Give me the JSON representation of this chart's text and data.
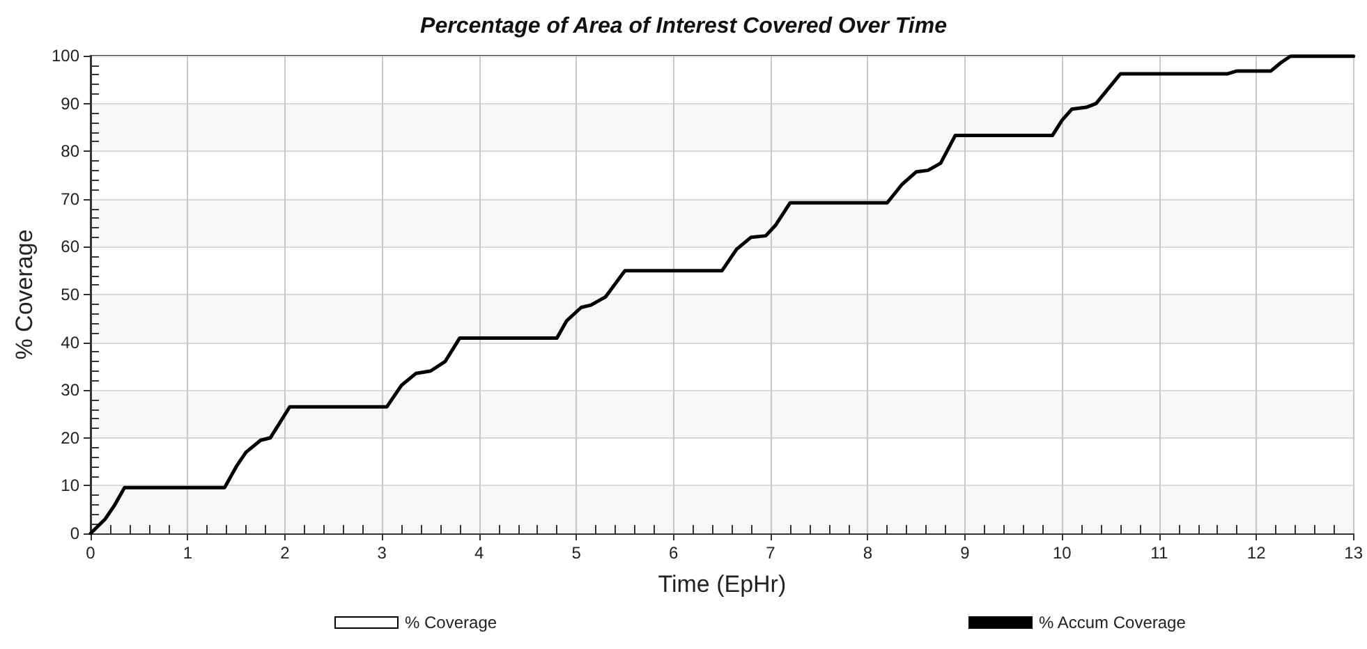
{
  "chart_data": {
    "type": "line",
    "title": "Percentage of Area of Interest Covered Over Time",
    "xlabel": "Time (EpHr)",
    "ylabel": "% Coverage",
    "x": [
      0,
      0.15,
      0.25,
      0.35,
      1.38,
      1.5,
      1.6,
      1.75,
      1.85,
      2.05,
      3.05,
      3.2,
      3.35,
      3.5,
      3.65,
      3.8,
      4.8,
      4.9,
      5.05,
      5.15,
      5.3,
      5.5,
      6.5,
      6.65,
      6.8,
      6.95,
      7.05,
      7.2,
      8.2,
      8.35,
      8.5,
      8.62,
      8.75,
      8.9,
      9.9,
      10,
      10.1,
      10.25,
      10.35,
      10.6,
      11.7,
      11.8,
      12.15,
      12.25,
      12.35,
      13
    ],
    "series": [
      {
        "name": "% Coverage",
        "color": "#ffffff",
        "values": [
          null,
          null,
          null,
          null,
          null,
          null,
          null,
          null,
          null,
          null,
          null,
          null,
          null,
          null,
          null,
          null,
          null,
          null,
          null,
          null,
          null,
          null,
          null,
          null,
          null,
          null,
          null,
          null,
          null,
          null,
          null,
          null,
          null,
          null,
          null,
          null,
          null,
          null,
          null,
          null,
          null,
          null,
          null,
          null,
          null,
          null
        ]
      },
      {
        "name": "% Accum Coverage",
        "color": "#000000",
        "values": [
          0,
          3,
          6,
          9.6,
          9.6,
          14,
          17,
          19.5,
          20,
          26.5,
          26.5,
          31,
          33.5,
          34,
          36,
          40.9,
          40.9,
          44.5,
          47.3,
          47.8,
          49.5,
          55,
          55,
          59.5,
          62,
          62.3,
          64.5,
          69.2,
          69.2,
          73,
          75.7,
          76,
          77.5,
          83.3,
          83.3,
          86.5,
          88.8,
          89.2,
          90,
          96.2,
          96.2,
          96.8,
          96.8,
          98.5,
          99.9,
          99.9
        ]
      }
    ],
    "xlim": [
      0,
      13
    ],
    "xticks": [
      0,
      1,
      2,
      3,
      4,
      5,
      6,
      7,
      8,
      9,
      10,
      11,
      12,
      13
    ],
    "ylim": [
      0,
      100
    ],
    "yticks": [
      0,
      10,
      20,
      30,
      40,
      50,
      60,
      70,
      80,
      90,
      100
    ],
    "grid": true,
    "legend": "bottom",
    "marker": "none",
    "line_style": "solid"
  }
}
